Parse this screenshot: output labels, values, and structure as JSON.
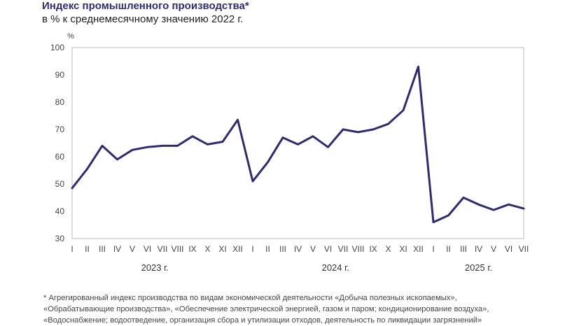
{
  "title": "Индекс промышленного производства*",
  "subtitle": "в % к среднемесячному значению 2022 г.",
  "footnote": {
    "line1": "*  Агрегированный индекс производства по видам экономической деятельности «Добыча полезных ископаемых»,",
    "line2": "«Обрабатывающие производства», «Обеспечение электрической энергией, газом и паром; кондиционирование воздуха»,",
    "line3": "«Водоснабжение; водоотведение, организация сбора и утилизации отходов, деятельность по ликвидации загрязнений»"
  },
  "chart_data": {
    "type": "line",
    "title": "Индекс промышленного производства*",
    "subtitle": "в % к среднемесячному значению 2022 г.",
    "ylabel": "%",
    "ylim": [
      30,
      100
    ],
    "yticks": [
      30,
      40,
      50,
      60,
      70,
      80,
      90,
      100
    ],
    "grid": false,
    "line_color": "#2f2c6e",
    "categories": [
      "I",
      "II",
      "III",
      "IV",
      "V",
      "VI",
      "VII",
      "VIII",
      "IX",
      "X",
      "XI",
      "XII",
      "I",
      "II",
      "III",
      "IV",
      "V",
      "VI",
      "VII",
      "VIII",
      "IX",
      "X",
      "XI",
      "XII",
      "I",
      "II",
      "III",
      "IV",
      "V",
      "VI",
      "VII"
    ],
    "years": [
      {
        "label": "2023 г.",
        "start": 0,
        "end": 11
      },
      {
        "label": "2024 г.",
        "start": 12,
        "end": 23
      },
      {
        "label": "2025 г.",
        "start": 24,
        "end": 30
      }
    ],
    "values": [
      48.5,
      55.5,
      64,
      59,
      62.5,
      63.5,
      64,
      64,
      67.5,
      64.5,
      65.5,
      73.5,
      51,
      58,
      67,
      64.5,
      67.5,
      63.5,
      70,
      69,
      70,
      72,
      77,
      93,
      36,
      38.5,
      45,
      42.5,
      40.5,
      42.5,
      41
    ]
  }
}
